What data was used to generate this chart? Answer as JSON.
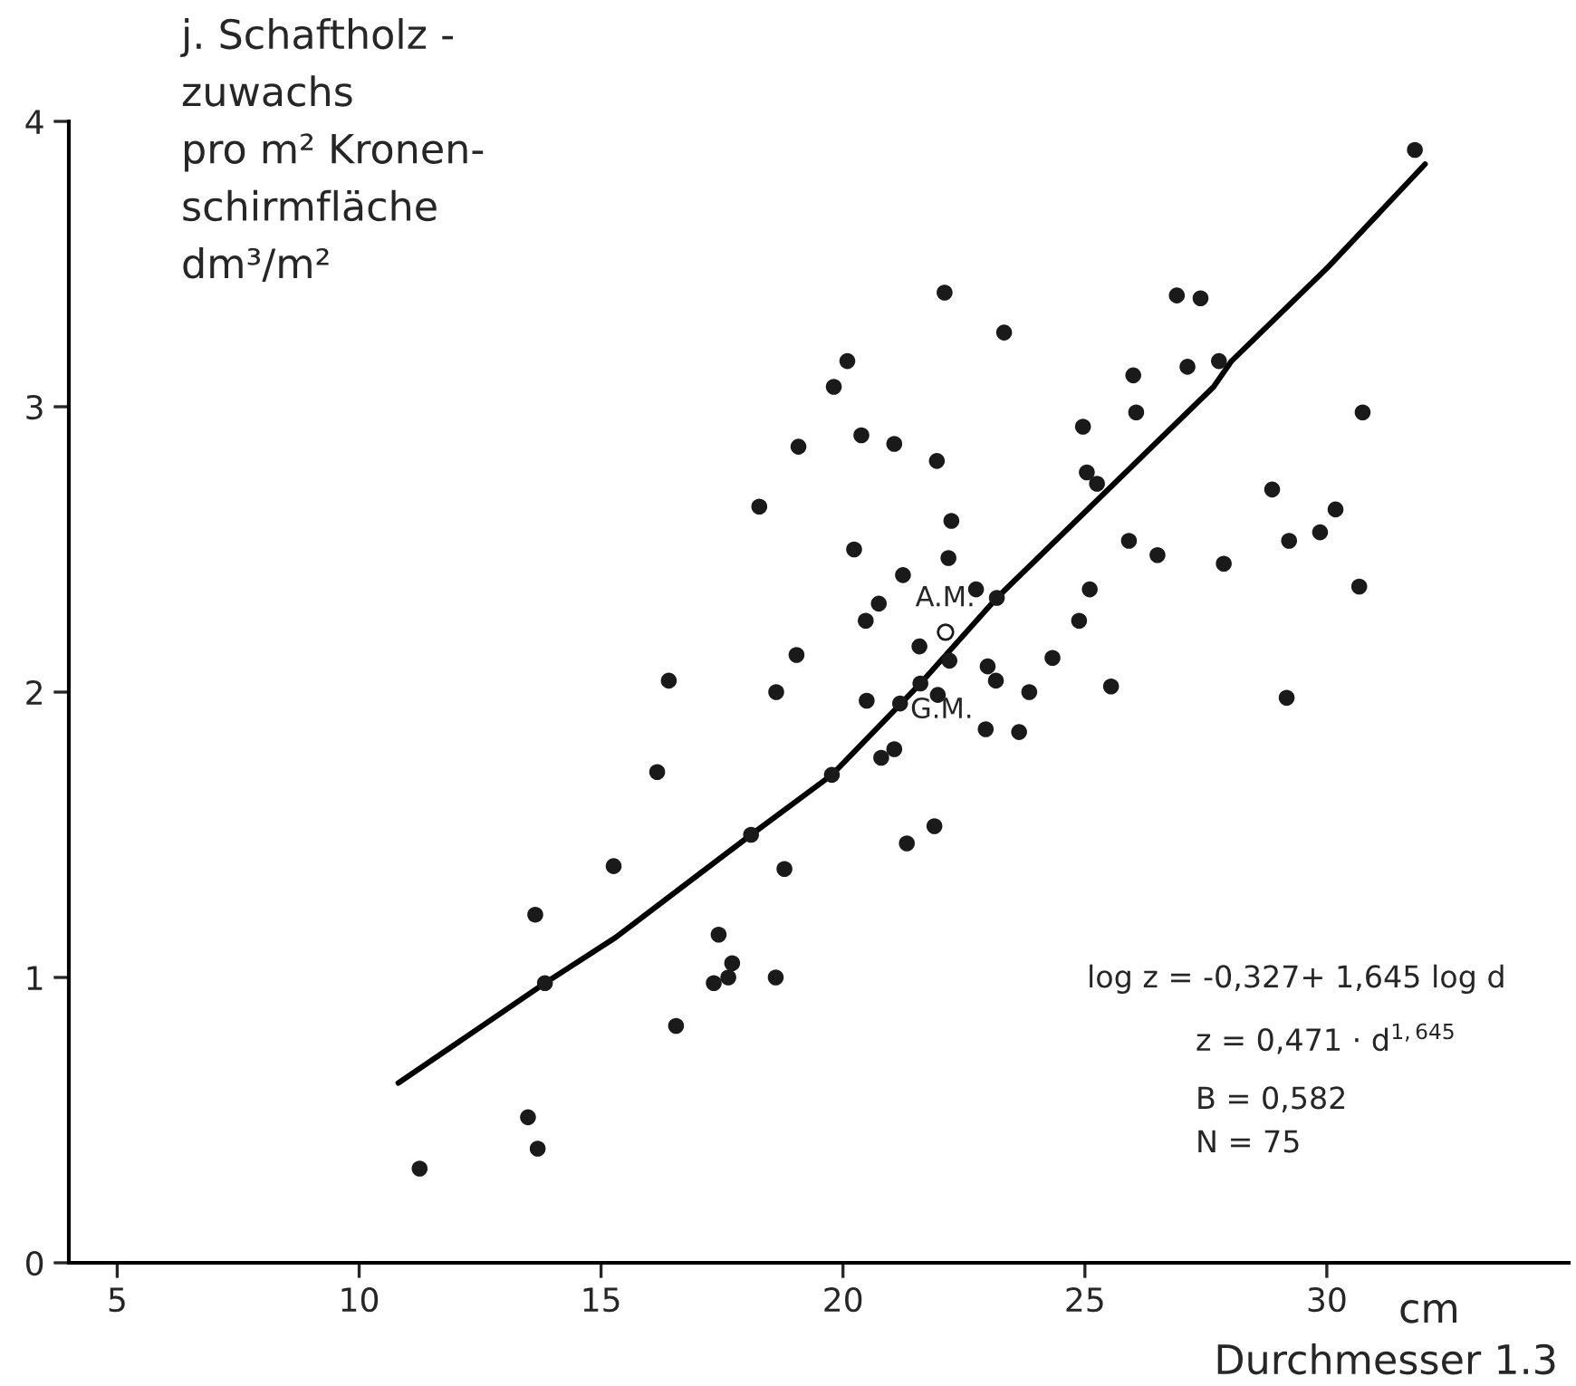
{
  "chart_data": {
    "type": "scatter",
    "ylabel": "j. Schaftholz -\nzuwachs\npro m² Kronen-\nschirmfläche\ndm³/m²",
    "xlabel": "Durchmesser 1.3",
    "xlim": [
      4,
      35
    ],
    "ylim": [
      0,
      4
    ],
    "xticks": [
      5,
      10,
      15,
      20,
      25,
      30
    ],
    "yticks": [
      0,
      1,
      2,
      3,
      4
    ],
    "grid": false,
    "legend": false,
    "marker": "circle",
    "series": [
      {
        "color": "#1a1a1a",
        "x": [
          22.1,
          23.33,
          26.9,
          27.39,
          20.09,
          19.81,
          26.0,
          27.12,
          26.06,
          24.96,
          19.08,
          20.38,
          21.06,
          21.94,
          25.04,
          25.25,
          18.27,
          22.24,
          20.23,
          22.18,
          21.24,
          25.91,
          26.5,
          22.75,
          23.18,
          25.1,
          31.82,
          27.77,
          30.74,
          28.87,
          30.18,
          29.22,
          29.86,
          27.87,
          30.67,
          24.88,
          24.33,
          25.54,
          29.17,
          20.74,
          20.47,
          21.58,
          22.2,
          19.04,
          22.99,
          23.16,
          23.85,
          16.4,
          18.62,
          21.6,
          21.96,
          20.49,
          21.18,
          22.95,
          23.64,
          16.16,
          21.06,
          20.79,
          19.77,
          21.89,
          21.32,
          18.1,
          15.26,
          18.79,
          13.64,
          17.43,
          17.71,
          17.63,
          17.33,
          18.61,
          13.84,
          16.55,
          13.49,
          13.69,
          11.25
        ],
        "values": [
          3.4,
          3.26,
          3.39,
          3.38,
          3.16,
          3.07,
          3.11,
          3.14,
          2.98,
          2.93,
          2.86,
          2.9,
          2.87,
          2.81,
          2.77,
          2.73,
          2.65,
          2.6,
          2.5,
          2.47,
          2.41,
          2.53,
          2.48,
          2.36,
          2.33,
          2.36,
          3.9,
          3.16,
          2.98,
          2.71,
          2.64,
          2.53,
          2.56,
          2.45,
          2.37,
          2.25,
          2.12,
          2.02,
          1.98,
          2.31,
          2.25,
          2.16,
          2.11,
          2.13,
          2.09,
          2.04,
          2.0,
          2.04,
          2.0,
          2.03,
          1.99,
          1.97,
          1.96,
          1.87,
          1.86,
          1.72,
          1.8,
          1.77,
          1.71,
          1.53,
          1.47,
          1.5,
          1.39,
          1.38,
          1.22,
          1.15,
          1.05,
          1.0,
          0.98,
          1.0,
          0.98,
          0.83,
          0.51,
          0.4,
          0.33
        ]
      },
      {
        "type": "line",
        "color": "#000000",
        "marker": "none",
        "line_style": "solid",
        "x": [
          10.81,
          13.84,
          15.3,
          18.1,
          19.77,
          21.6,
          23.18,
          27.66,
          28.03,
          30.03,
          32.03
        ],
        "values": [
          0.63,
          0.98,
          1.14,
          1.5,
          1.71,
          2.03,
          2.33,
          3.07,
          3.16,
          3.49,
          3.85
        ]
      }
    ],
    "annotations": [
      {
        "text": "A.M.",
        "x": 22.12,
        "y": 2.21
      },
      {
        "text": "G.M.",
        "x": 21.6,
        "y": 2.03
      },
      "cm",
      "log z = -0,327+ 1,645 log d",
      "z = 0,471 · d$^{1,645}$",
      "B = 0,582",
      "N = 75"
    ]
  }
}
